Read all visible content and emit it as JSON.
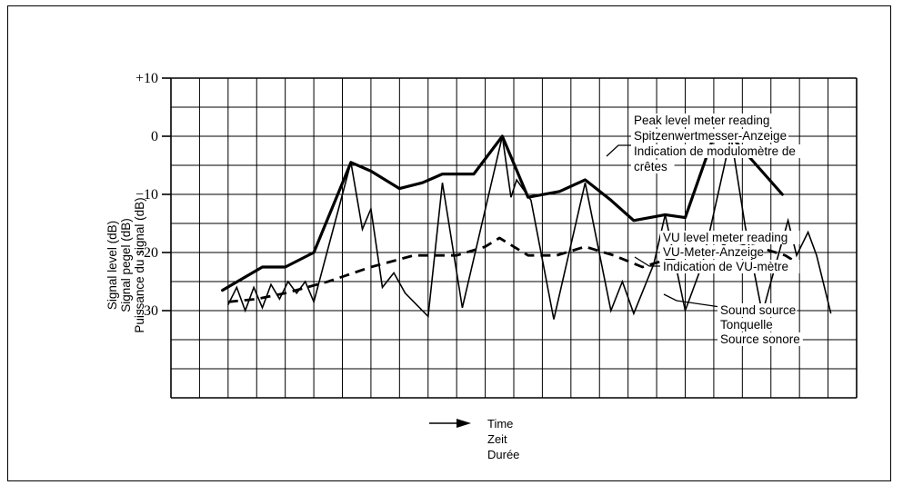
{
  "chart_data": {
    "type": "line",
    "title": "",
    "ylabel_lines": [
      "Signal level (dB)",
      "Signal pegel (dB)",
      "Puissance du signal (dB)"
    ],
    "xlabel_lines": [
      "Time",
      "Zeit",
      "Durée"
    ],
    "ylim": [
      -45,
      10
    ],
    "xlim": [
      0,
      24
    ],
    "y_ticks": [
      {
        "value": 10,
        "label": "+10"
      },
      {
        "value": 0,
        "label": "0"
      },
      {
        "value": -10,
        "label": "−10"
      },
      {
        "value": -20,
        "label": "−20"
      },
      {
        "value": -30,
        "label": "−30"
      }
    ],
    "grid": true,
    "series": [
      {
        "key": "peak",
        "style": "thick",
        "annotation": [
          "Peak level meter reading",
          "Spitzenwertmesser-Anzeige",
          "Indication de modulomètre de",
          "crêtes"
        ],
        "x": [
          1.8,
          3.2,
          4.0,
          5.0,
          6.3,
          7.0,
          8.0,
          8.8,
          9.5,
          10.6,
          11.6,
          12.5,
          13.6,
          14.5,
          15.4,
          16.2,
          17.3,
          18.0,
          19.0,
          19.6,
          21.4
        ],
        "y": [
          -26.5,
          -22.5,
          -22.5,
          -20,
          -4.5,
          -6,
          -9,
          -8,
          -6.5,
          -6.5,
          0,
          -10.5,
          -9.5,
          -7.5,
          -11,
          -14.5,
          -13.5,
          -14,
          0,
          0,
          -10
        ]
      },
      {
        "key": "vu",
        "style": "dashed",
        "annotation": [
          "VU level meter reading",
          "VU-Meter-Anzeige",
          "Indication de VU-mètre"
        ],
        "x": [
          2.0,
          3.0,
          4.0,
          5.5,
          7.0,
          8.5,
          10.0,
          11.0,
          11.5,
          12.5,
          13.5,
          14.5,
          15.5,
          16.5,
          17.5,
          18.5,
          19.5,
          20.5,
          21.5,
          22.0
        ],
        "y": [
          -28.5,
          -28,
          -27,
          -25,
          -22.5,
          -20.5,
          -20.5,
          -19,
          -17.5,
          -20.5,
          -20.5,
          -19,
          -20.5,
          -22.5,
          -21,
          -22.5,
          -18,
          -19,
          -20.5,
          -22
        ]
      },
      {
        "key": "source",
        "style": "thin",
        "annotation": [
          "Sound source",
          "Tonquelle",
          "Source sonore"
        ],
        "x": [
          2.0,
          2.3,
          2.6,
          2.9,
          3.2,
          3.5,
          3.8,
          4.1,
          4.4,
          4.7,
          5.0,
          6.3,
          6.7,
          7.0,
          7.4,
          7.8,
          8.2,
          9.0,
          9.5,
          10.2,
          11.6,
          11.9,
          12.1,
          12.6,
          13.4,
          14.5,
          15.4,
          15.8,
          16.2,
          16.9,
          17.3,
          18.0,
          18.6,
          19.6,
          20.1,
          20.7,
          21.2,
          21.6,
          21.9,
          22.3,
          22.6,
          23.1
        ],
        "y": [
          -29,
          -26,
          -30,
          -26,
          -29.5,
          -25.5,
          -28,
          -25,
          -27,
          -25,
          -28.5,
          -4.5,
          -16,
          -12.5,
          -26,
          -23.5,
          -27,
          -31,
          -8,
          -29.5,
          0,
          -10.5,
          -7.5,
          -11,
          -31.5,
          -8,
          -30,
          -25,
          -30.5,
          -22,
          -13.5,
          -30,
          -22,
          0,
          -15.5,
          -30.5,
          -21.5,
          -14.5,
          -20.5,
          -16.5,
          -20.5,
          -30.5
        ]
      }
    ]
  }
}
